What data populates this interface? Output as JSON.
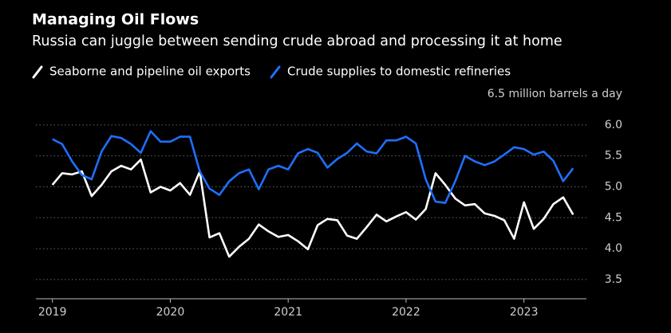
{
  "chart_data": {
    "type": "line",
    "title": "Managing Oil Flows",
    "subtitle": "Russia can juggle between sending crude abroad and processing it at home",
    "x": [
      2019,
      2019.083,
      2019.167,
      2019.25,
      2019.333,
      2019.417,
      2019.5,
      2019.583,
      2019.667,
      2019.75,
      2019.833,
      2019.917,
      2020,
      2020.083,
      2020.167,
      2020.25,
      2020.333,
      2020.417,
      2020.5,
      2020.583,
      2020.667,
      2020.75,
      2020.833,
      2020.917,
      2021,
      2021.083,
      2021.167,
      2021.25,
      2021.333,
      2021.417,
      2021.5,
      2021.583,
      2021.667,
      2021.75,
      2021.833,
      2021.917,
      2022,
      2022.083,
      2022.167,
      2022.25,
      2022.333,
      2022.417,
      2022.5,
      2022.583,
      2022.667,
      2022.75,
      2022.833,
      2022.917,
      2023,
      2023.083,
      2023.167,
      2023.25,
      2023.333,
      2023.417
    ],
    "series": [
      {
        "name": "Seaborne and pipeline oil exports",
        "color": "#ffffff",
        "values": [
          5.03,
          5.22,
          5.2,
          5.25,
          4.85,
          5.03,
          5.25,
          5.34,
          5.28,
          5.44,
          4.91,
          5.0,
          4.94,
          5.06,
          4.87,
          5.25,
          4.18,
          4.25,
          3.87,
          4.03,
          4.16,
          4.39,
          4.28,
          4.19,
          4.22,
          4.12,
          3.99,
          4.38,
          4.48,
          4.46,
          4.21,
          4.16,
          4.35,
          4.55,
          4.44,
          4.52,
          4.59,
          4.47,
          4.64,
          5.22,
          5.03,
          4.81,
          4.7,
          4.72,
          4.57,
          4.53,
          4.46,
          4.16,
          4.75,
          4.32,
          4.48,
          4.72,
          4.83,
          4.55
        ]
      },
      {
        "name": "Crude supplies to domestic refineries",
        "color": "#1f6fff",
        "values": [
          5.77,
          5.69,
          5.41,
          5.19,
          5.12,
          5.57,
          5.82,
          5.79,
          5.69,
          5.55,
          5.9,
          5.73,
          5.73,
          5.81,
          5.81,
          5.25,
          4.97,
          4.87,
          5.09,
          5.22,
          5.28,
          4.96,
          5.28,
          5.34,
          5.28,
          5.54,
          5.61,
          5.55,
          5.31,
          5.45,
          5.55,
          5.7,
          5.57,
          5.54,
          5.75,
          5.75,
          5.81,
          5.7,
          5.12,
          4.76,
          4.74,
          5.09,
          5.5,
          5.41,
          5.35,
          5.41,
          5.52,
          5.64,
          5.61,
          5.52,
          5.57,
          5.42,
          5.09,
          5.3
        ]
      }
    ],
    "xlim": [
      2018.86,
      2023.53
    ],
    "xticks": [
      2019,
      2020,
      2021,
      2022,
      2023
    ],
    "ylim": [
      3.19,
      6.5
    ],
    "yticks": [
      3.5,
      {
        "value": 4,
        "label": "4.0"
      },
      4.5,
      {
        "value": 5,
        "label": "5.0"
      },
      5.5,
      {
        "value": 6,
        "label": "6.0"
      },
      {
        "value": 6.5,
        "label": "6.5 million barrels a day"
      }
    ],
    "grid": true
  }
}
